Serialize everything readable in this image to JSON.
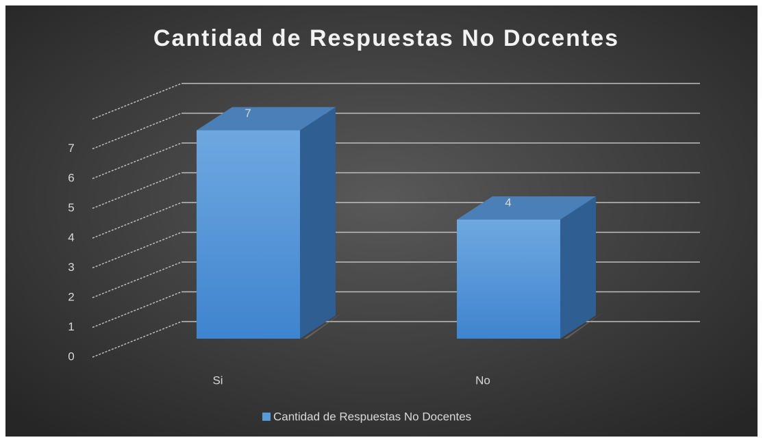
{
  "chart_data": {
    "type": "bar3d",
    "title": "Cantidad de Respuestas No Docentes",
    "categories": [
      "Si",
      "No"
    ],
    "series": [
      {
        "name": "Cantidad de Respuestas No Docentes",
        "color": "#5b9bd5",
        "values": [
          7,
          4
        ]
      }
    ],
    "ylim": [
      0,
      8
    ],
    "yticks": [
      0,
      1,
      2,
      3,
      4,
      5,
      6,
      7
    ],
    "grid": true,
    "legend": "bottom"
  }
}
